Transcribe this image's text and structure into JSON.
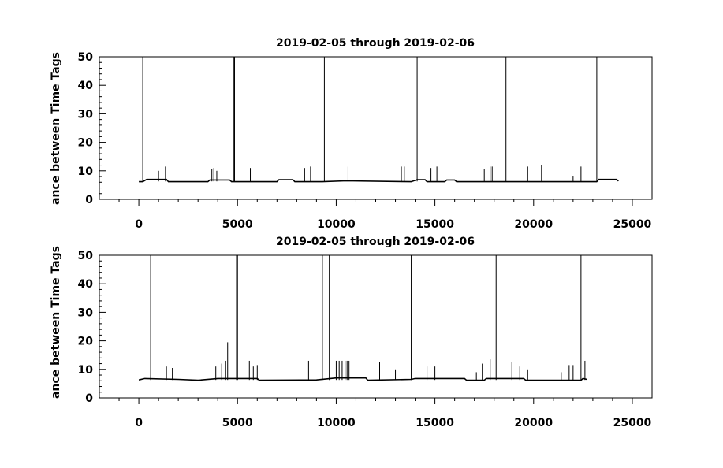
{
  "chart_data": [
    {
      "type": "line",
      "title": "2019-02-05 through 2019-02-06",
      "xlabel": "",
      "ylabel": "ance between Time Tags",
      "xlim": [
        -2000,
        26000
      ],
      "ylim": [
        0,
        50
      ],
      "xticks": [
        0,
        5000,
        10000,
        15000,
        20000,
        25000
      ],
      "xtick_labels": [
        "0",
        "5000",
        "10000",
        "15000",
        "20000",
        "25000"
      ],
      "yticks": [
        0,
        10,
        20,
        30,
        40,
        50
      ],
      "ytick_labels": [
        "0",
        "10",
        "20",
        "30",
        "40",
        "50"
      ],
      "grid": false,
      "series": [
        {
          "baseline": [
            [
              0,
              6.2
            ],
            [
              200,
              6.2
            ],
            [
              400,
              7.0
            ],
            [
              1400,
              7.0
            ],
            [
              1500,
              6.2
            ],
            [
              3500,
              6.2
            ],
            [
              3600,
              6.8
            ],
            [
              4600,
              6.8
            ],
            [
              4700,
              6.2
            ],
            [
              7000,
              6.2
            ],
            [
              7100,
              6.9
            ],
            [
              7800,
              6.9
            ],
            [
              7900,
              6.2
            ],
            [
              9300,
              6.2
            ],
            [
              10500,
              6.5
            ],
            [
              13800,
              6.2
            ],
            [
              14100,
              6.9
            ],
            [
              14500,
              6.9
            ],
            [
              14600,
              6.2
            ],
            [
              15500,
              6.2
            ],
            [
              15600,
              6.8
            ],
            [
              16000,
              6.8
            ],
            [
              16100,
              6.2
            ],
            [
              23200,
              6.2
            ],
            [
              23300,
              7.0
            ],
            [
              24200,
              7.0
            ],
            [
              24300,
              6.4
            ]
          ],
          "spikes": [
            [
              200,
              50
            ],
            [
              1000,
              10
            ],
            [
              1350,
              11.5
            ],
            [
              3700,
              10.5
            ],
            [
              3800,
              11
            ],
            [
              3950,
              10
            ],
            [
              4800,
              50
            ],
            [
              4850,
              50
            ],
            [
              5650,
              11
            ],
            [
              8400,
              11
            ],
            [
              8700,
              11.5
            ],
            [
              9400,
              50
            ],
            [
              10600,
              11.5
            ],
            [
              13300,
              11.5
            ],
            [
              13450,
              11.5
            ],
            [
              14100,
              50
            ],
            [
              14800,
              11
            ],
            [
              15100,
              11.5
            ],
            [
              17500,
              10.5
            ],
            [
              17800,
              11.5
            ],
            [
              17900,
              11.5
            ],
            [
              18600,
              50
            ],
            [
              19700,
              11.5
            ],
            [
              20400,
              12
            ],
            [
              22000,
              8
            ],
            [
              22400,
              11.5
            ],
            [
              23200,
              50
            ]
          ]
        }
      ]
    },
    {
      "type": "line",
      "title": "2019-02-05 through 2019-02-06",
      "xlabel": "",
      "ylabel": "ance between Time Tags",
      "xlim": [
        -2000,
        26000
      ],
      "ylim": [
        0,
        50
      ],
      "xticks": [
        0,
        5000,
        10000,
        15000,
        20000,
        25000
      ],
      "xtick_labels": [
        "0",
        "5000",
        "10000",
        "15000",
        "20000",
        "25000"
      ],
      "yticks": [
        0,
        10,
        20,
        30,
        40,
        50
      ],
      "ytick_labels": [
        "0",
        "10",
        "20",
        "30",
        "40",
        "50"
      ],
      "grid": false,
      "series": [
        {
          "baseline": [
            [
              0,
              6.3
            ],
            [
              300,
              6.8
            ],
            [
              2000,
              6.5
            ],
            [
              3000,
              6.2
            ],
            [
              4000,
              6.8
            ],
            [
              6000,
              6.8
            ],
            [
              6100,
              6.2
            ],
            [
              9000,
              6.3
            ],
            [
              10000,
              7.0
            ],
            [
              11500,
              7.0
            ],
            [
              11600,
              6.2
            ],
            [
              13800,
              6.5
            ],
            [
              14000,
              6.8
            ],
            [
              16500,
              6.8
            ],
            [
              16600,
              6.2
            ],
            [
              17500,
              6.2
            ],
            [
              17600,
              6.8
            ],
            [
              19500,
              6.8
            ],
            [
              19600,
              6.2
            ],
            [
              22400,
              6.2
            ],
            [
              22500,
              6.8
            ],
            [
              22700,
              6.5
            ]
          ],
          "spikes": [
            [
              600,
              50
            ],
            [
              1400,
              11
            ],
            [
              1700,
              10.5
            ],
            [
              3900,
              11
            ],
            [
              4200,
              12
            ],
            [
              4400,
              13
            ],
            [
              4500,
              19.5
            ],
            [
              4950,
              50
            ],
            [
              5000,
              50
            ],
            [
              5600,
              13
            ],
            [
              5800,
              11
            ],
            [
              6000,
              11.5
            ],
            [
              8600,
              13
            ],
            [
              9300,
              50
            ],
            [
              9650,
              50
            ],
            [
              10000,
              13
            ],
            [
              10150,
              13
            ],
            [
              10300,
              13
            ],
            [
              10450,
              13
            ],
            [
              10550,
              13
            ],
            [
              10650,
              13
            ],
            [
              12200,
              12.5
            ],
            [
              13000,
              10
            ],
            [
              13800,
              50
            ],
            [
              14600,
              11
            ],
            [
              15000,
              11
            ],
            [
              17100,
              9
            ],
            [
              17400,
              12
            ],
            [
              17800,
              13.5
            ],
            [
              18100,
              50
            ],
            [
              18900,
              12.5
            ],
            [
              19300,
              11
            ],
            [
              19700,
              10
            ],
            [
              21400,
              9
            ],
            [
              21800,
              11.5
            ],
            [
              22000,
              11.5
            ],
            [
              22400,
              50
            ],
            [
              22600,
              13
            ]
          ]
        }
      ]
    }
  ]
}
